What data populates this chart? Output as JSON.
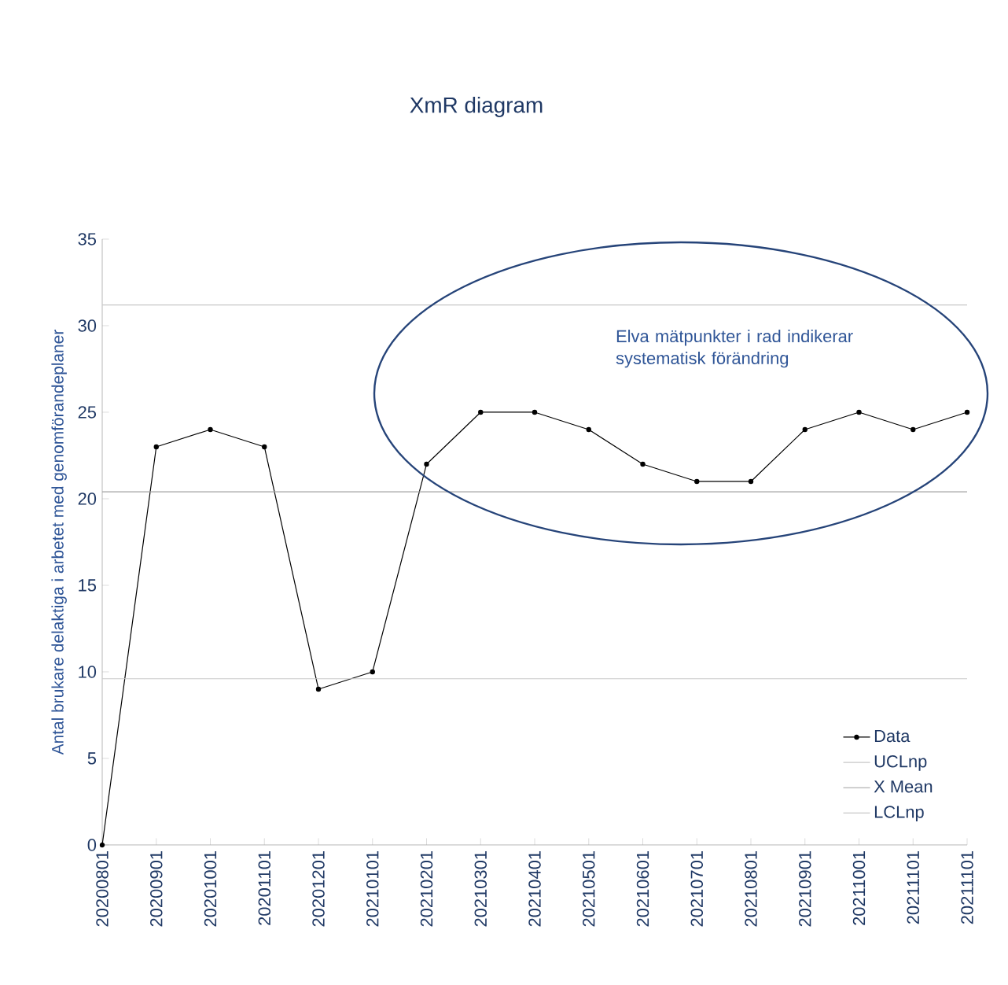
{
  "chart_data": {
    "type": "line",
    "title": "XmR diagram",
    "ylabel": "Antal brukare delaktiga i arbetet med genomförandeplaner",
    "categories": [
      "20200801",
      "20200901",
      "20201001",
      "20201101",
      "20201201",
      "20210101",
      "20210201",
      "20210301",
      "20210401",
      "20210501",
      "20210601",
      "20210701",
      "20210801",
      "20210901",
      "20211001",
      "20211101",
      "20211101"
    ],
    "series": [
      {
        "name": "Data",
        "color": "#000000",
        "marker": "circle",
        "values": [
          0,
          23,
          24,
          23,
          9,
          10,
          22,
          25,
          25,
          24,
          22,
          21,
          21,
          24,
          25,
          24,
          25
        ]
      },
      {
        "name": "UCLnp",
        "color": "#c8c8c8",
        "marker": "none",
        "values": [
          31.2,
          31.2,
          31.2,
          31.2,
          31.2,
          31.2,
          31.2,
          31.2,
          31.2,
          31.2,
          31.2,
          31.2,
          31.2,
          31.2,
          31.2,
          31.2,
          31.2
        ]
      },
      {
        "name": "X Mean",
        "color": "#a0a0a0",
        "marker": "none",
        "values": [
          20.4,
          20.4,
          20.4,
          20.4,
          20.4,
          20.4,
          20.4,
          20.4,
          20.4,
          20.4,
          20.4,
          20.4,
          20.4,
          20.4,
          20.4,
          20.4,
          20.4
        ]
      },
      {
        "name": "LCLnp",
        "color": "#c8c8c8",
        "marker": "none",
        "values": [
          9.6,
          9.6,
          9.6,
          9.6,
          9.6,
          9.6,
          9.6,
          9.6,
          9.6,
          9.6,
          9.6,
          9.6,
          9.6,
          9.6,
          9.6,
          9.6,
          9.6
        ]
      }
    ],
    "ylim": [
      0,
      35
    ],
    "yticks": [
      0,
      5,
      10,
      15,
      20,
      25,
      30,
      35
    ],
    "annotations": [
      "Elva mätpunkter i rad indikerar systematisk förändring"
    ],
    "legend": "bottom right",
    "grid": false
  }
}
